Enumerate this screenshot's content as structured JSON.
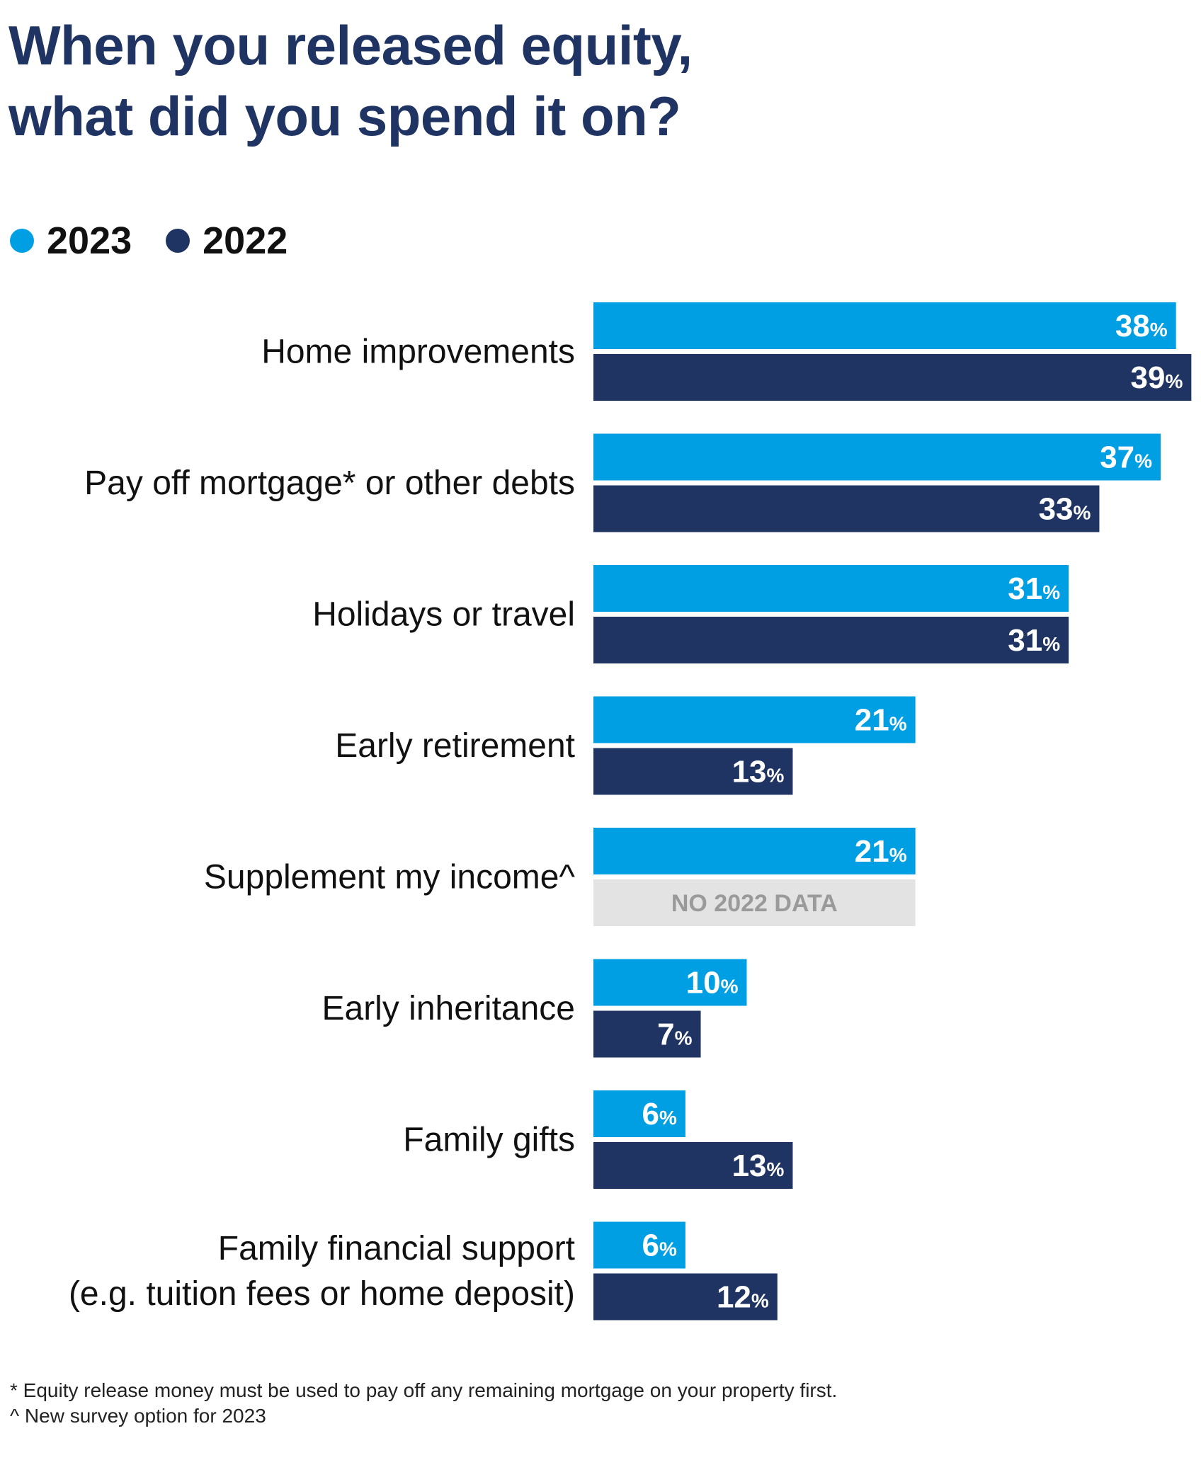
{
  "header": {
    "title_line1": "When you released equity,",
    "title_line2": "what did you spend it on?"
  },
  "legend": [
    {
      "label": "2023",
      "color": "#009fe3"
    },
    {
      "label": "2022",
      "color": "#1f3462"
    }
  ],
  "chart_data": {
    "type": "bar",
    "orientation": "horizontal",
    "title": "When you released equity, what did you spend it on?",
    "categories": [
      [
        "Home improvements"
      ],
      [
        "Pay off mortgage* or other debts"
      ],
      [
        "Holidays or travel"
      ],
      [
        "Early retirement"
      ],
      [
        "Supplement my income^"
      ],
      [
        "Early inheritance"
      ],
      [
        "Family gifts"
      ],
      [
        "Family financial support",
        "(e.g. tuition fees or home deposit)"
      ]
    ],
    "series": [
      {
        "name": "2023",
        "color": "#009fe3",
        "values": [
          38,
          37,
          31,
          21,
          21,
          10,
          6,
          6
        ]
      },
      {
        "name": "2022",
        "color": "#1f3462",
        "values": [
          39,
          33,
          31,
          13,
          null,
          7,
          13,
          12
        ]
      }
    ],
    "value_suffix": "%",
    "no_data_label": "NO 2022 DATA",
    "no_data_color": "#e3e3e3",
    "xlim": [
      0,
      39
    ],
    "grid": false,
    "legend_position": "top-left"
  },
  "footnotes": {
    "line1": "* Equity release money must be used to pay off any remaining mortgage on your property first.",
    "line2": "^ New survey option for 2023"
  }
}
